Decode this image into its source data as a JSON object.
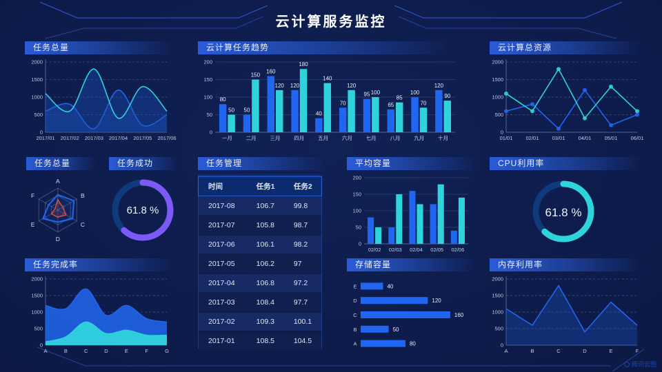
{
  "title": "云计算服务监控",
  "watermark": "腾讯云图",
  "colors": {
    "blue": "#2166f0",
    "cyan": "#2fd3dc",
    "purple": "#7d5af5",
    "red": "#e5502d",
    "donut_track": "#0f3b7c",
    "area_fill": "#1a4fb8",
    "header_accent": "#2b5bd7",
    "background": "#0c1a47"
  },
  "panels": {
    "task_total_top": {
      "title": "任务总量"
    },
    "task_trend": {
      "title": "云计算任务趋势"
    },
    "total_resources": {
      "title": "云计算总资源"
    },
    "task_total_radar": {
      "title": "任务总量"
    },
    "task_success": {
      "title": "任务成功",
      "value": "61.8 %"
    },
    "task_management": {
      "title": "任务管理",
      "columns": [
        "时间",
        "任务1",
        "任务2"
      ],
      "rows": [
        [
          "2017-08",
          "106.7",
          "99.8"
        ],
        [
          "2017-07",
          "105.8",
          "98.7"
        ],
        [
          "2017-06",
          "106.1",
          "98.2"
        ],
        [
          "2017-05",
          "106.2",
          "97"
        ],
        [
          "2017-04",
          "106.8",
          "97.2"
        ],
        [
          "2017-03",
          "108.4",
          "97.7"
        ],
        [
          "2017-02",
          "109.3",
          "100.1"
        ],
        [
          "2017-01",
          "108.5",
          "104.5"
        ]
      ]
    },
    "avg_capacity": {
      "title": "平均容量"
    },
    "cpu": {
      "title": "CPU利用率",
      "value": "61.8 %"
    },
    "task_completion": {
      "title": "任务完成率"
    },
    "storage": {
      "title": "存储容量"
    },
    "memory": {
      "title": "内存利用率"
    }
  },
  "chart_data": [
    {
      "id": "task_total_top",
      "type": "line",
      "smooth": true,
      "area": true,
      "title": "任务总量",
      "x": [
        "2017/01",
        "2017/02",
        "2017/03",
        "2017/04",
        "2017/05",
        "2017/06"
      ],
      "series": [
        {
          "name": "series-blue",
          "color": "blue",
          "values": [
            600,
            800,
            100,
            1200,
            200,
            500
          ]
        },
        {
          "name": "series-cyan",
          "color": "cyan",
          "values": [
            1100,
            600,
            1800,
            400,
            1300,
            600
          ]
        }
      ],
      "yticks": [
        0,
        500,
        1000,
        1500,
        2000
      ],
      "ylim": [
        0,
        2000
      ],
      "grid": "dashed",
      "legend": "none"
    },
    {
      "id": "task_trend",
      "type": "bar",
      "labels": true,
      "title": "云计算任务趋势",
      "x": [
        "一月",
        "二月",
        "三月",
        "四月",
        "五月",
        "六月",
        "七月",
        "八月",
        "九月",
        "十月"
      ],
      "series": [
        {
          "name": "任务1",
          "color": "blue",
          "values": [
            80,
            50,
            160,
            120,
            40,
            70,
            95,
            65,
            100,
            120
          ]
        },
        {
          "name": "任务2",
          "color": "cyan",
          "values": [
            50,
            150,
            120,
            180,
            140,
            120,
            100,
            85,
            70,
            90
          ]
        }
      ],
      "yticks": [
        0,
        50,
        100,
        150,
        200
      ],
      "ylim": [
        0,
        200
      ],
      "grid": "solid",
      "legend": "none"
    },
    {
      "id": "total_resources",
      "type": "line",
      "smooth": false,
      "markers": true,
      "title": "云计算总资源",
      "x": [
        "01/01",
        "02/01",
        "03/01",
        "04/01",
        "05/01",
        "06/01"
      ],
      "series": [
        {
          "name": "series-blue",
          "color": "blue",
          "values": [
            600,
            800,
            100,
            1200,
            200,
            500
          ]
        },
        {
          "name": "series-cyan",
          "color": "cyan",
          "values": [
            1100,
            600,
            1800,
            400,
            1300,
            600
          ]
        }
      ],
      "yticks": [
        0,
        500,
        1000,
        1500,
        2000
      ],
      "ylim": [
        0,
        2000
      ],
      "grid": "dashed",
      "legend": "none"
    },
    {
      "id": "task_total_radar",
      "type": "radar",
      "title": "任务总量",
      "axes": [
        "A",
        "B",
        "C",
        "D",
        "E",
        "F"
      ],
      "max": 100,
      "series": [
        {
          "name": "series-blue",
          "color": "blue",
          "values": [
            70,
            85,
            78,
            55,
            78,
            48
          ]
        },
        {
          "name": "series-red",
          "color": "red",
          "values": [
            48,
            26,
            44,
            32,
            34,
            14
          ]
        }
      ]
    },
    {
      "id": "task_success_donut",
      "type": "donut",
      "title": "任务成功",
      "value": 61.8,
      "color": "purple"
    },
    {
      "id": "avg_capacity",
      "type": "bar",
      "labels": false,
      "title": "平均容量",
      "x": [
        "02/02",
        "02/03",
        "02/04",
        "02/05",
        "02/06"
      ],
      "series": [
        {
          "name": "series-blue",
          "color": "blue",
          "values": [
            80,
            50,
            160,
            120,
            40
          ]
        },
        {
          "name": "series-cyan",
          "color": "cyan",
          "values": [
            50,
            150,
            120,
            180,
            140
          ]
        }
      ],
      "yticks": [
        0,
        50,
        100,
        150,
        200
      ],
      "ylim": [
        0,
        200
      ],
      "grid": "solid",
      "legend": "none"
    },
    {
      "id": "cpu_donut",
      "type": "donut",
      "title": "CPU利用率",
      "value": 61.8,
      "color": "cyan"
    },
    {
      "id": "task_completion",
      "type": "area",
      "smooth": true,
      "title": "任务完成率",
      "x": [
        "A",
        "B",
        "C",
        "D",
        "E",
        "F",
        "G"
      ],
      "series": [
        {
          "name": "series-blue",
          "color": "blue",
          "values": [
            1200,
            1100,
            1700,
            900,
            1200,
            800,
            700
          ]
        },
        {
          "name": "series-cyan",
          "color": "cyan",
          "values": [
            100,
            250,
            700,
            350,
            450,
            300,
            300
          ]
        }
      ],
      "yticks": [
        0,
        500,
        1000,
        1500,
        2000
      ],
      "ylim": [
        0,
        2000
      ],
      "grid": "dashed",
      "legend": "none"
    },
    {
      "id": "storage",
      "type": "hbar",
      "title": "存储容量",
      "categories": [
        "E",
        "D",
        "C",
        "B",
        "A"
      ],
      "values": [
        40,
        120,
        160,
        50,
        80
      ],
      "xmax": 170
    },
    {
      "id": "memory",
      "type": "line",
      "smooth": false,
      "area": true,
      "title": "内存利用率",
      "x": [
        "A",
        "B",
        "C",
        "D",
        "E",
        "F"
      ],
      "series": [
        {
          "name": "series-blue",
          "color": "blue",
          "values": [
            1100,
            600,
            1800,
            400,
            1300,
            600
          ]
        }
      ],
      "yticks": [
        0,
        500,
        1000,
        1500,
        2000
      ],
      "ylim": [
        0,
        2000
      ],
      "grid": "dashed",
      "legend": "none"
    }
  ]
}
